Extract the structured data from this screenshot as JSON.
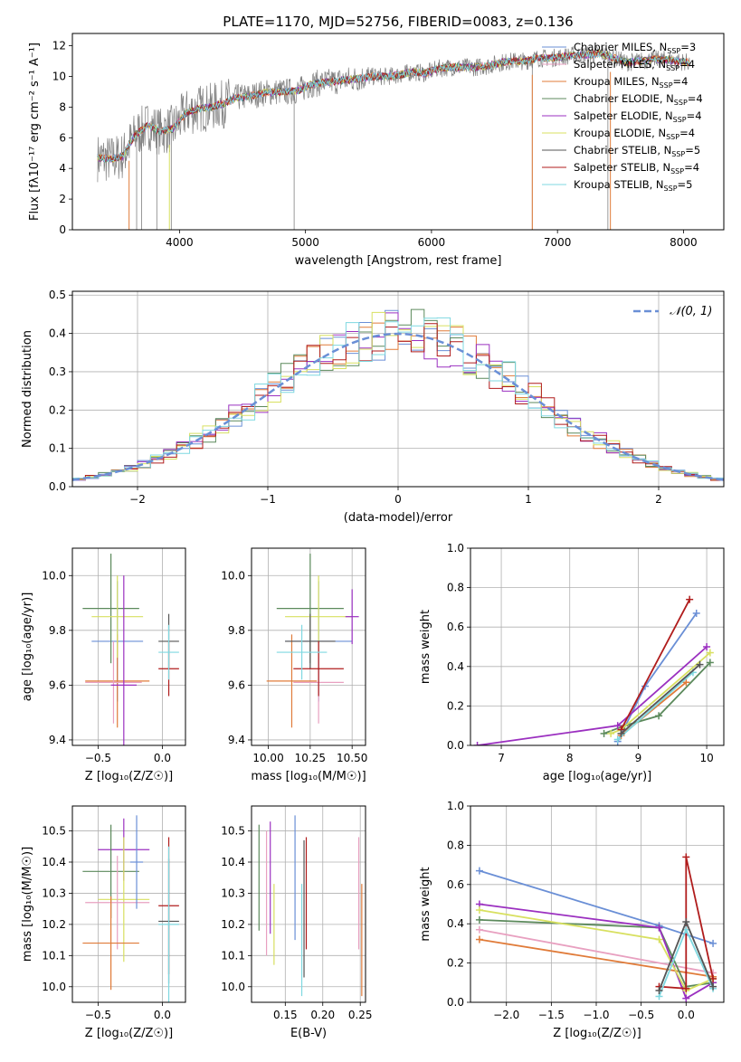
{
  "figure": {
    "title": "PLATE=1170, MJD=52756, FIBERID=0083, z=0.136"
  },
  "chart_data": [
    {
      "id": "spectrum",
      "type": "line",
      "xlabel": "wavelength [Angstrom, rest frame]",
      "ylabel": "Flux [fλ10⁻¹⁷ erg cm⁻² s⁻¹ A⁻¹]",
      "xlim": [
        3150,
        8320
      ],
      "ylim": [
        0,
        12.8
      ],
      "xticks": [
        4000,
        5000,
        6000,
        7000,
        8000
      ],
      "yticks": [
        0,
        2,
        4,
        6,
        8,
        10,
        12
      ],
      "grid": false,
      "legend_position": "top-right",
      "data_series": {
        "name": "",
        "color": "#808080",
        "x": [
          3350,
          3450,
          3550,
          3650,
          3750,
          3850,
          3950,
          4050,
          4150,
          4250,
          4350,
          4450,
          4550,
          4650,
          4750,
          4850,
          4950,
          5050,
          5150,
          5250,
          5350,
          5450,
          5550,
          5650,
          5750,
          5850,
          5950,
          6050,
          6150,
          6250,
          6350,
          6450,
          6550,
          6650,
          6750,
          6850,
          6950,
          7050,
          7150,
          7250,
          7350,
          7450,
          7550,
          7650,
          7750,
          7850,
          7950,
          8050
        ],
        "y": [
          4.7,
          4.6,
          4.8,
          6.2,
          6.8,
          6.4,
          6.6,
          7.6,
          7.9,
          8.0,
          8.2,
          8.6,
          8.7,
          8.9,
          9.0,
          9.0,
          9.1,
          9.5,
          9.6,
          9.7,
          9.8,
          9.9,
          10.0,
          10.0,
          10.1,
          10.3,
          10.2,
          10.5,
          10.6,
          10.6,
          10.6,
          10.7,
          10.9,
          11.0,
          11.0,
          11.2,
          11.2,
          11.3,
          11.4,
          11.4,
          11.5,
          11.2,
          10.9,
          11.0,
          11.1,
          11.1,
          11.0,
          10.9
        ]
      },
      "series": [
        {
          "name": "Chabrier MILES, N_SSP=3",
          "label_main": "Chabrier MILES, N",
          "n_ssp": "=3",
          "color": "#6a8fd6"
        },
        {
          "name": "Salpeter MILES, N_SSP=4",
          "label_main": "Salpeter MILES, N",
          "n_ssp": "=4",
          "color": "#e8a0c0"
        },
        {
          "name": "Kroupa MILES, N_SSP=4",
          "label_main": "Kroupa MILES, N",
          "n_ssp": "=4",
          "color": "#e07b39"
        },
        {
          "name": "Chabrier ELODIE, N_SSP=4",
          "label_main": "Chabrier ELODIE, N",
          "n_ssp": "=4",
          "color": "#5c8a5c"
        },
        {
          "name": "Salpeter ELODIE, N_SSP=4",
          "label_main": "Salpeter ELODIE, N",
          "n_ssp": "=4",
          "color": "#9b30c0"
        },
        {
          "name": "Kroupa ELODIE, N_SSP=4",
          "label_main": "Kroupa ELODIE, N",
          "n_ssp": "=4",
          "color": "#d8e060"
        },
        {
          "name": "Chabrier STELIB, N_SSP=5",
          "label_main": "Chabrier STELIB, N",
          "n_ssp": "=5",
          "color": "#555555"
        },
        {
          "name": "Salpeter STELIB, N_SSP=4",
          "label_main": "Salpeter STELIB, N",
          "n_ssp": "=4",
          "color": "#b01c1c"
        },
        {
          "name": "Kroupa STELIB, N_SSP=5",
          "label_main": "Kroupa STELIB, N",
          "n_ssp": "=5",
          "color": "#7fd8e0"
        }
      ],
      "legend_subscript": "SSP"
    },
    {
      "id": "residuals",
      "type": "histogram",
      "xlabel": "(data-model)/error",
      "ylabel": "Normed distribution",
      "xlim": [
        -2.5,
        2.5
      ],
      "ylim": [
        0,
        0.51
      ],
      "xticks": [
        -2,
        -1,
        0,
        1,
        2
      ],
      "yticks": [
        0.0,
        0.1,
        0.2,
        0.3,
        0.4,
        0.5
      ],
      "grid": true,
      "legend_position": "top-right",
      "bin_width": 0.1,
      "bin_start": -2.5,
      "gaussian": {
        "name": "𝒩(0, 1)",
        "mean": 0,
        "sigma": 1,
        "color": "#6a8fd6"
      },
      "colors": [
        "#6a8fd6",
        "#e07b39",
        "#5c8a5c",
        "#9b30c0",
        "#d8e060",
        "#b01c1c",
        "#7fd8e0"
      ]
    },
    {
      "id": "age-vs-Z",
      "type": "errorbar",
      "xlabel": "Z [log₁₀(Z/Z☉)]",
      "ylabel": "age  [log₁₀(age/yr)]",
      "xlim": [
        -0.7,
        0.18
      ],
      "ylim": [
        9.38,
        10.1
      ],
      "xticks": [
        -0.5,
        0.0
      ],
      "yticks": [
        9.4,
        9.6,
        9.8,
        10.0
      ],
      "grid": true,
      "points": [
        {
          "x": -0.35,
          "y": 9.76,
          "xerr": 0.2,
          "yerr": 0.22,
          "color": "#6a8fd6"
        },
        {
          "x": -0.35,
          "y": 9.615,
          "xerr": 0.25,
          "yerr": 0.17,
          "color": "#e07b39"
        },
        {
          "x": -0.4,
          "y": 9.88,
          "xerr": 0.22,
          "yerr": 0.2,
          "color": "#5c8a5c"
        },
        {
          "x": -0.35,
          "y": 9.85,
          "xerr": 0.2,
          "yerr": 0.15,
          "color": "#d8e060"
        },
        {
          "x": -0.38,
          "y": 9.61,
          "xerr": 0.22,
          "yerr": 0.15,
          "color": "#e8a0c0"
        },
        {
          "x": 0.05,
          "y": 9.76,
          "xerr": 0.08,
          "yerr": 0.1,
          "color": "#555555"
        },
        {
          "x": 0.05,
          "y": 9.66,
          "xerr": 0.08,
          "yerr": 0.1,
          "color": "#b01c1c"
        },
        {
          "x": 0.05,
          "y": 9.72,
          "xerr": 0.08,
          "yerr": 0.1,
          "color": "#7fd8e0"
        },
        {
          "x": -0.3,
          "y": 9.6,
          "xerr": 0.1,
          "yerr": 0.4,
          "color": "#9b30c0"
        }
      ]
    },
    {
      "id": "age-vs-mass",
      "type": "errorbar",
      "xlabel": "mass [log₁₀(M/M☉)]",
      "ylabel": "",
      "xlim": [
        9.9,
        10.58
      ],
      "ylim": [
        9.38,
        10.1
      ],
      "xticks": [
        10.0,
        10.25,
        10.5
      ],
      "yticks": [
        9.4,
        9.6,
        9.8,
        10.0
      ],
      "grid": true,
      "points": [
        {
          "x": 10.3,
          "y": 9.76,
          "xerr": 0.2,
          "yerr": 0.22,
          "color": "#6a8fd6"
        },
        {
          "x": 10.14,
          "y": 9.615,
          "xerr": 0.15,
          "yerr": 0.17,
          "color": "#e07b39"
        },
        {
          "x": 10.25,
          "y": 9.88,
          "xerr": 0.2,
          "yerr": 0.2,
          "color": "#5c8a5c"
        },
        {
          "x": 10.3,
          "y": 9.85,
          "xerr": 0.2,
          "yerr": 0.15,
          "color": "#d8e060"
        },
        {
          "x": 10.3,
          "y": 9.61,
          "xerr": 0.15,
          "yerr": 0.15,
          "color": "#e8a0c0"
        },
        {
          "x": 10.25,
          "y": 9.76,
          "xerr": 0.15,
          "yerr": 0.1,
          "color": "#555555"
        },
        {
          "x": 10.3,
          "y": 9.66,
          "xerr": 0.15,
          "yerr": 0.1,
          "color": "#b01c1c"
        },
        {
          "x": 10.2,
          "y": 9.72,
          "xerr": 0.15,
          "yerr": 0.1,
          "color": "#7fd8e0"
        },
        {
          "x": 10.5,
          "y": 9.85,
          "xerr": 0.04,
          "yerr": 0.1,
          "color": "#9b30c0"
        }
      ]
    },
    {
      "id": "massweight-vs-age",
      "type": "line",
      "xlabel": "age  [log₁₀(age/yr)]",
      "ylabel": "mass weight",
      "xlim": [
        6.55,
        10.25
      ],
      "ylim": [
        0,
        1.0
      ],
      "xticks": [
        7,
        8,
        9,
        10
      ],
      "yticks": [
        0.0,
        0.2,
        0.4,
        0.6,
        0.8,
        1.0
      ],
      "grid": true,
      "series": [
        {
          "color": "#6a8fd6",
          "x": [
            8.7,
            9.1,
            9.85
          ],
          "y": [
            0.02,
            0.3,
            0.67
          ]
        },
        {
          "color": "#e07b39",
          "x": [
            8.75,
            9.7
          ],
          "y": [
            0.05,
            0.32
          ]
        },
        {
          "color": "#5c8a5c",
          "x": [
            8.5,
            8.8,
            9.3,
            10.05
          ],
          "y": [
            0.06,
            0.1,
            0.15,
            0.42
          ]
        },
        {
          "color": "#9b30c0",
          "x": [
            6.65,
            8.7,
            10.0
          ],
          "y": [
            0.0,
            0.1,
            0.5
          ]
        },
        {
          "color": "#d8e060",
          "x": [
            8.6,
            8.75,
            10.05
          ],
          "y": [
            0.06,
            0.08,
            0.47
          ]
        },
        {
          "color": "#b01c1c",
          "x": [
            8.75,
            9.75
          ],
          "y": [
            0.08,
            0.74
          ]
        },
        {
          "color": "#7fd8e0",
          "x": [
            8.7,
            9.8
          ],
          "y": [
            0.03,
            0.37
          ]
        },
        {
          "color": "#555555",
          "x": [
            8.75,
            9.9
          ],
          "y": [
            0.06,
            0.41
          ]
        }
      ]
    },
    {
      "id": "mass-vs-Z",
      "type": "errorbar",
      "xlabel": "Z [log₁₀(Z/Z☉)]",
      "ylabel": "mass [log₁₀(M/M☉)]",
      "xlim": [
        -0.7,
        0.18
      ],
      "ylim": [
        9.95,
        10.58
      ],
      "xticks": [
        -0.5,
        0.0
      ],
      "yticks": [
        10.0,
        10.1,
        10.2,
        10.3,
        10.4,
        10.5
      ],
      "grid": true,
      "points": [
        {
          "x": -0.3,
          "y": 10.44,
          "xerr": 0.2,
          "yerr": 0.1,
          "color": "#9b30c0"
        },
        {
          "x": -0.4,
          "y": 10.37,
          "xerr": 0.22,
          "yerr": 0.15,
          "color": "#5c8a5c"
        },
        {
          "x": -0.3,
          "y": 10.28,
          "xerr": 0.2,
          "yerr": 0.2,
          "color": "#d8e060"
        },
        {
          "x": -0.35,
          "y": 10.27,
          "xerr": 0.25,
          "yerr": 0.15,
          "color": "#e8a0c0"
        },
        {
          "x": -0.4,
          "y": 10.14,
          "xerr": 0.22,
          "yerr": 0.15,
          "color": "#e07b39"
        },
        {
          "x": 0.05,
          "y": 10.26,
          "xerr": 0.08,
          "yerr": 0.22,
          "color": "#b01c1c"
        },
        {
          "x": 0.05,
          "y": 10.21,
          "xerr": 0.08,
          "yerr": 0.2,
          "color": "#555555"
        },
        {
          "x": 0.05,
          "y": 10.2,
          "xerr": 0.08,
          "yerr": 0.25,
          "color": "#7fd8e0"
        },
        {
          "x": -0.2,
          "y": 10.4,
          "xerr": 0.05,
          "yerr": 0.15,
          "color": "#6a8fd6"
        }
      ]
    },
    {
      "id": "mass-vs-ebv",
      "type": "errorbar",
      "xlabel": "E(B-V)",
      "ylabel": "",
      "xlim": [
        0.105,
        0.257
      ],
      "ylim": [
        9.95,
        10.58
      ],
      "xticks": [
        0.15,
        0.2,
        0.25
      ],
      "yticks": [
        10.0,
        10.1,
        10.2,
        10.3,
        10.4,
        10.5
      ],
      "grid": true,
      "points": [
        {
          "x": 0.115,
          "y": 10.35,
          "yerr": 0.17,
          "color": "#5c8a5c"
        },
        {
          "x": 0.125,
          "y": 10.3,
          "yerr": 0.2,
          "color": "#e8a0c0"
        },
        {
          "x": 0.13,
          "y": 10.35,
          "yerr": 0.18,
          "color": "#9b30c0"
        },
        {
          "x": 0.135,
          "y": 10.2,
          "yerr": 0.13,
          "color": "#d8e060"
        },
        {
          "x": 0.163,
          "y": 10.35,
          "yerr": 0.2,
          "color": "#6a8fd6"
        },
        {
          "x": 0.172,
          "y": 10.15,
          "yerr": 0.18,
          "color": "#7fd8e0"
        },
        {
          "x": 0.175,
          "y": 10.25,
          "yerr": 0.22,
          "color": "#555555"
        },
        {
          "x": 0.178,
          "y": 10.3,
          "yerr": 0.18,
          "color": "#b01c1c"
        },
        {
          "x": 0.248,
          "y": 10.3,
          "yerr": 0.18,
          "color": "#e8a0c0"
        },
        {
          "x": 0.252,
          "y": 10.15,
          "yerr": 0.18,
          "color": "#e07b39"
        }
      ]
    },
    {
      "id": "massweight-vs-Z",
      "type": "line",
      "xlabel": "Z [log₁₀(Z/Z☉)]",
      "ylabel": "mass weight",
      "xlim": [
        -2.4,
        0.42
      ],
      "ylim": [
        0,
        1.0
      ],
      "xticks": [
        -2.0,
        -1.5,
        -1.0,
        -0.5,
        0.0
      ],
      "yticks": [
        0.0,
        0.2,
        0.4,
        0.6,
        0.8,
        1.0
      ],
      "grid": true,
      "series": [
        {
          "color": "#6a8fd6",
          "x": [
            -2.3,
            -0.3,
            0.3
          ],
          "y": [
            0.67,
            0.39,
            0.3
          ]
        },
        {
          "color": "#e07b39",
          "x": [
            -2.3,
            0.3
          ],
          "y": [
            0.32,
            0.13
          ]
        },
        {
          "color": "#e8a0c0",
          "x": [
            -2.3,
            0.3
          ],
          "y": [
            0.37,
            0.15
          ]
        },
        {
          "color": "#5c8a5c",
          "x": [
            -2.3,
            -0.3,
            0.0,
            0.3
          ],
          "y": [
            0.42,
            0.38,
            0.08,
            0.1
          ]
        },
        {
          "color": "#9b30c0",
          "x": [
            -2.3,
            -0.3,
            0.0,
            0.3
          ],
          "y": [
            0.5,
            0.38,
            0.02,
            0.1
          ]
        },
        {
          "color": "#d8e060",
          "x": [
            -2.3,
            -0.3,
            0.0,
            0.3
          ],
          "y": [
            0.47,
            0.32,
            0.06,
            0.12
          ]
        },
        {
          "color": "#b01c1c",
          "x": [
            -0.3,
            0.0,
            0.0,
            0.3
          ],
          "y": [
            0.08,
            0.07,
            0.74,
            0.12
          ]
        },
        {
          "color": "#7fd8e0",
          "x": [
            -0.3,
            0.0,
            0.3
          ],
          "y": [
            0.03,
            0.37,
            0.07
          ]
        },
        {
          "color": "#555555",
          "x": [
            -0.3,
            0.0,
            0.3
          ],
          "y": [
            0.06,
            0.41,
            0.08
          ]
        }
      ]
    }
  ]
}
